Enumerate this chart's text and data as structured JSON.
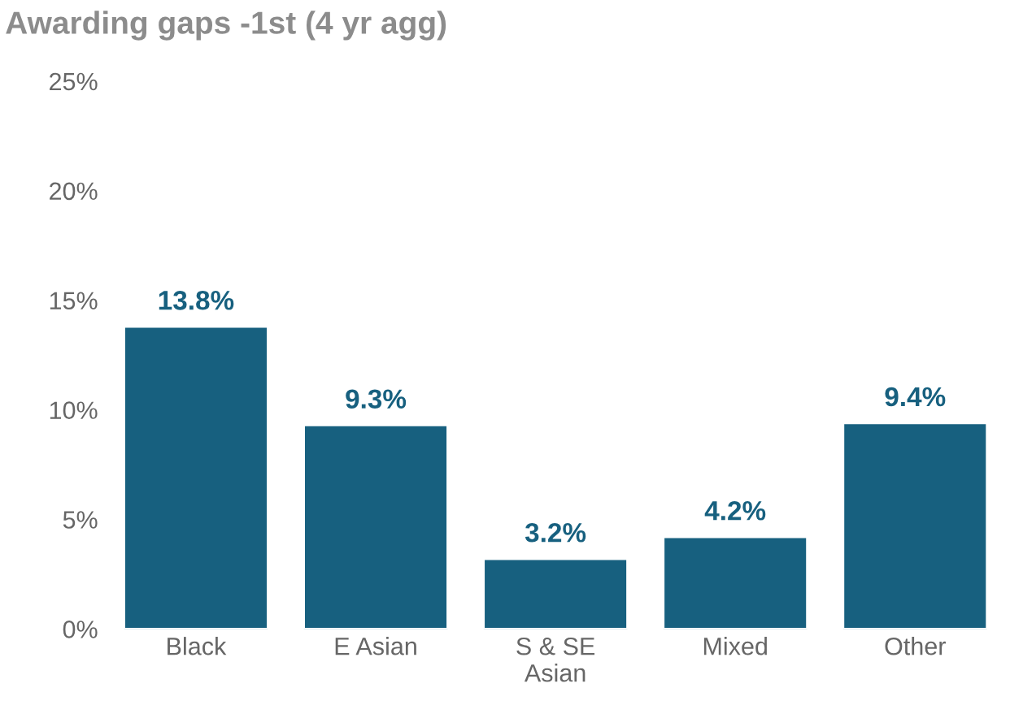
{
  "chart_data": {
    "type": "bar",
    "title": "Awarding gaps -1st (4 yr agg)",
    "categories": [
      "Black",
      "E Asian",
      "S & SE\nAsian",
      "Mixed",
      "Other"
    ],
    "values": [
      13.8,
      9.3,
      3.2,
      4.2,
      9.4
    ],
    "value_labels": [
      "13.8%",
      "9.3%",
      "3.2%",
      "4.2%",
      "9.4%"
    ],
    "color": "#17607f",
    "ylim": [
      0,
      25
    ],
    "yticks": [
      {
        "value": 0,
        "label": "0%"
      },
      {
        "value": 5,
        "label": "5%"
      },
      {
        "value": 10,
        "label": "10%"
      },
      {
        "value": 15,
        "label": "15%"
      },
      {
        "value": 20,
        "label": "20%"
      },
      {
        "value": 25,
        "label": "25%"
      }
    ],
    "grid": false
  }
}
